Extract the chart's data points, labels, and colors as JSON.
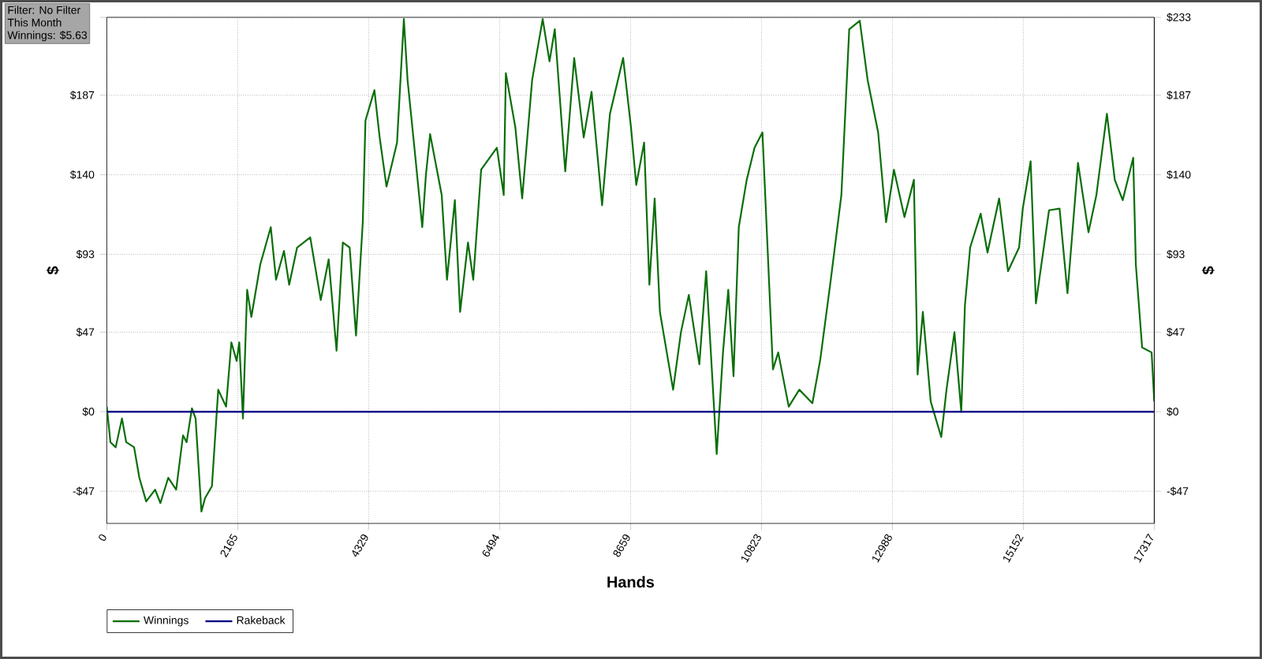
{
  "chart_data": {
    "type": "line",
    "xlabel": "Hands",
    "ylabel": "$",
    "y2label": "$",
    "annotations": [
      "Filter: No Filter",
      "This Month",
      "Winnings: $5.63"
    ],
    "xlim": [
      0,
      17317
    ],
    "xticks": [
      0,
      2165,
      4329,
      6494,
      8659,
      10823,
      12988,
      15152,
      17317
    ],
    "ylim": [
      -66,
      233
    ],
    "yticks": [
      {
        "value": -47,
        "label": "-$47"
      },
      {
        "value": 0,
        "label": "$0"
      },
      {
        "value": 47,
        "label": "$47"
      },
      {
        "value": 93,
        "label": "$93"
      },
      {
        "value": 140,
        "label": "$140"
      },
      {
        "value": 187,
        "label": "$187"
      },
      {
        "value": 233,
        "label": null
      }
    ],
    "y2lim": [
      -66,
      233
    ],
    "y2ticks": [
      {
        "value": -47,
        "label": "-$47"
      },
      {
        "value": 0,
        "label": "$0"
      },
      {
        "value": 47,
        "label": "$47"
      },
      {
        "value": 93,
        "label": "$93"
      },
      {
        "value": 140,
        "label": "$140"
      },
      {
        "value": 187,
        "label": "$187"
      },
      {
        "value": 233,
        "label": "$233"
      }
    ],
    "grid": true,
    "legend": "bottom left",
    "marker": "none",
    "line_style": "solid",
    "series": [
      {
        "name": "Winnings",
        "color": "#0a6e0a",
        "x": [
          0,
          60,
          147,
          251,
          321,
          451,
          538,
          651,
          799,
          886,
          1016,
          1147,
          1260,
          1320,
          1407,
          1468,
          1564,
          1625,
          1738,
          1842,
          1972,
          2059,
          2146,
          2190,
          2251,
          2320,
          2390,
          2537,
          2711,
          2798,
          2929,
          3015,
          3146,
          3363,
          3537,
          3668,
          3798,
          3902,
          4015,
          4120,
          4232,
          4276,
          4424,
          4511,
          4624,
          4798,
          4911,
          4972,
          5102,
          5215,
          5276,
          5345,
          5537,
          5624,
          5754,
          5841,
          5971,
          6058,
          6189,
          6449,
          6562,
          6597,
          6754,
          6867,
          7032,
          7206,
          7319,
          7406,
          7579,
          7727,
          7884,
          8014,
          8188,
          8318,
          8536,
          8666,
          8753,
          8883,
          8970,
          9057,
          9144,
          9362,
          9492,
          9622,
          9796,
          9909,
          10083,
          10187,
          10274,
          10361,
          10448,
          10579,
          10709,
          10839,
          11013,
          11100,
          11274,
          11448,
          11665,
          11796,
          11969,
          12144,
          12274,
          12448,
          12578,
          12752,
          12883,
          13013,
          13187,
          13343,
          13404,
          13491,
          13621,
          13795,
          13882,
          14013,
          14126,
          14187,
          14273,
          14447,
          14560,
          14752,
          14899,
          15082,
          15143,
          15273,
          15360,
          15577,
          15751,
          15882,
          16056,
          16229,
          16360,
          16534,
          16664,
          16795,
          16969,
          17012,
          17116,
          17273,
          17317
        ],
        "values": [
          3,
          -18,
          -21,
          -4,
          -18,
          -21,
          -39,
          -53,
          -46,
          -54,
          -39,
          -46,
          -14,
          -18,
          2,
          -4,
          -59,
          -51,
          -44,
          13,
          3,
          41,
          30,
          41,
          -4,
          72,
          56,
          87,
          109,
          78,
          95,
          75,
          97,
          103,
          66,
          90,
          36,
          100,
          97,
          45,
          112,
          172,
          190,
          162,
          133,
          159,
          232,
          196,
          150,
          109,
          140,
          164,
          128,
          78,
          125,
          59,
          100,
          78,
          143,
          156,
          128,
          200,
          168,
          126,
          196,
          232,
          207,
          226,
          142,
          209,
          162,
          189,
          122,
          176,
          209,
          168,
          134,
          159,
          75,
          126,
          59,
          13,
          47,
          69,
          28,
          83,
          -25,
          35,
          72,
          21,
          109,
          137,
          156,
          165,
          25,
          35,
          3,
          13,
          5,
          31,
          78,
          128,
          226,
          231,
          196,
          165,
          112,
          143,
          115,
          137,
          22,
          59,
          6,
          -15,
          13,
          47,
          0,
          63,
          97,
          117,
          94,
          126,
          83,
          97,
          120,
          148,
          64,
          119,
          120,
          70,
          147,
          106,
          128,
          176,
          137,
          125,
          150,
          87,
          38,
          35,
          6
        ]
      },
      {
        "name": "Rakeback",
        "color": "#000080",
        "x": [
          0,
          17317
        ],
        "values": [
          0,
          0
        ]
      }
    ]
  }
}
